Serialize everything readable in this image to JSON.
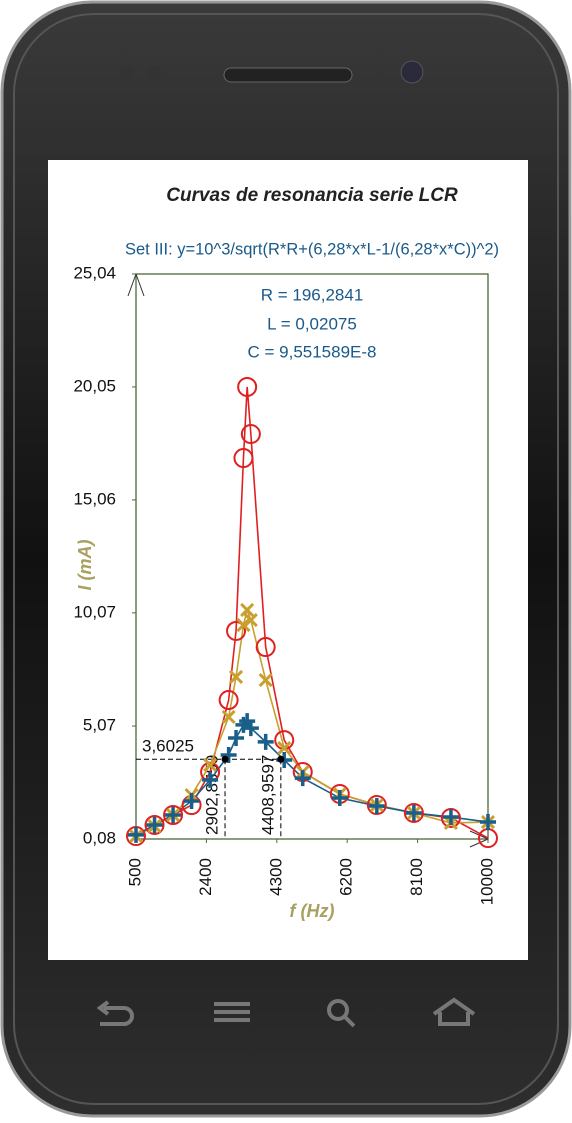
{
  "chart_data": {
    "type": "scatter-line",
    "title": "Curvas de resonancia serie LCR",
    "subtitle": "Set III: y=10^3/sqrt(R*R+(6,28*x*L-1/(6,28*x*C))^2)",
    "annotations": [
      "R = 196,2841",
      "L = 0,02075",
      "C = 9,551589E-8"
    ],
    "x_label": "f (Hz)",
    "y_label": "I (mA)",
    "xlim": [
      500,
      10000
    ],
    "ylim": [
      0.08,
      25.04
    ],
    "xticks": [
      500,
      2400,
      4300,
      6200,
      8100,
      10000
    ],
    "yticks": [
      {
        "value": 0.08,
        "label": "0,08"
      },
      {
        "value": 5.07,
        "label": "5,07"
      },
      {
        "value": 10.07,
        "label": "10,07"
      },
      {
        "value": 15.06,
        "label": "15,06"
      },
      {
        "value": 20.05,
        "label": "20,05"
      },
      {
        "value": 25.04,
        "label": "25,04"
      }
    ],
    "x": [
      500,
      1000,
      1500,
      2000,
      2500,
      3000,
      3200,
      3400,
      3500,
      3600,
      4000,
      4500,
      5000,
      6000,
      7000,
      8000,
      9000,
      10000
    ],
    "series": [
      {
        "marker": "circle",
        "color": "#e02020",
        "values": [
          0.21,
          0.7,
          1.14,
          1.58,
          3.04,
          6.22,
          9.27,
          16.91,
          20.05,
          17.97,
          8.56,
          4.45,
          3.04,
          2.07,
          1.58,
          1.23,
          1.01,
          0.12
        ]
      },
      {
        "marker": "x",
        "color": "#c8a030",
        "values": [
          0.21,
          0.65,
          1.14,
          2.02,
          3.35,
          5.47,
          7.24,
          9.53,
          10.2,
          9.75,
          7.1,
          4.1,
          3.04,
          2.07,
          1.58,
          1.23,
          0.79,
          0.83
        ]
      },
      {
        "marker": "plus",
        "color": "#1a5f8a",
        "values": [
          0.26,
          0.7,
          1.14,
          1.76,
          2.69,
          3.79,
          4.54,
          5.12,
          5.29,
          4.98,
          4.37,
          3.57,
          2.77,
          1.89,
          1.54,
          1.23,
          1.05,
          0.83
        ]
      }
    ],
    "bandwidth": {
      "level": 3.6025,
      "level_label": "3,6025",
      "f1": 2902.8559,
      "f1_label": "2902,8559",
      "f2": 4408.9597,
      "f2_label": "4408,9597"
    }
  }
}
